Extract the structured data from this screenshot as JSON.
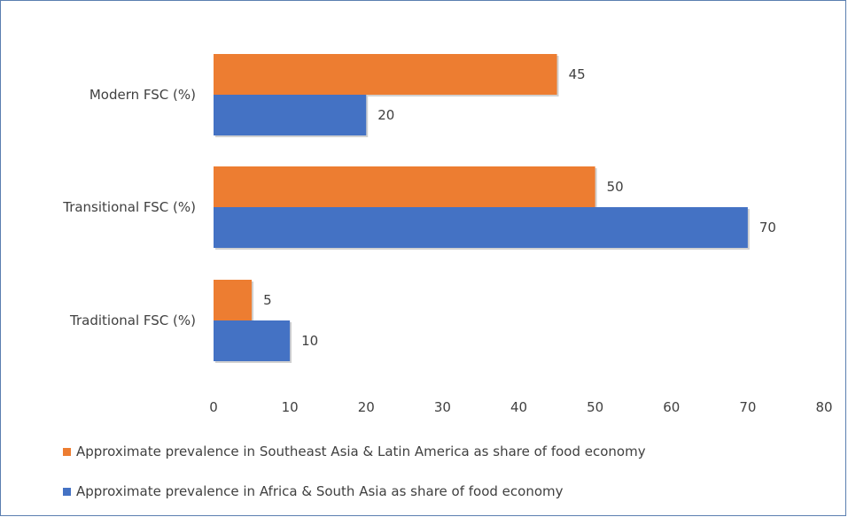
{
  "chart_data": {
    "type": "bar",
    "orientation": "horizontal",
    "categories": [
      "Modern FSC (%)",
      "Transitional FSC (%)",
      "Traditional FSC (%)"
    ],
    "series": [
      {
        "name": "Approximate prevalence in Southeast Asia & Latin America as share of food economy",
        "values": [
          45,
          50,
          5
        ],
        "color": "#ed7d31"
      },
      {
        "name": "Approximate prevalence in Africa & South Asia as share of food economy",
        "values": [
          20,
          70,
          10
        ],
        "color": "#4472c4"
      }
    ],
    "xlim": [
      0,
      80
    ],
    "xticks": [
      "0",
      "10",
      "20",
      "30",
      "40",
      "50",
      "60",
      "70",
      "80"
    ],
    "grid": false,
    "legend_position": "bottom"
  }
}
